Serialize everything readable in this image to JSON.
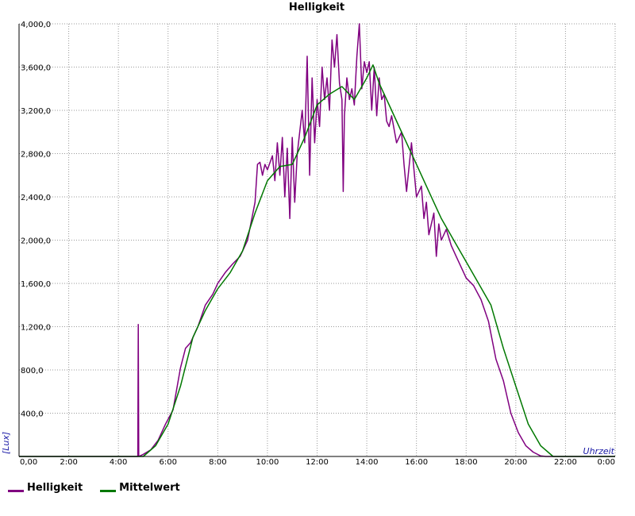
{
  "chart_data": {
    "type": "line",
    "title": "Helligkeit",
    "xlabel": "Uhrzeit",
    "ylabel": "[Lux]",
    "x_unit": "hours",
    "xlim": [
      0,
      24
    ],
    "ylim": [
      0,
      4000
    ],
    "x_tick_labels": [
      "0,00",
      "2:00",
      "4:00",
      "6:00",
      "8:00",
      "10:00",
      "12:00",
      "14:00",
      "16:00",
      "18:00",
      "20:00",
      "22:00",
      "0:00"
    ],
    "y_tick_labels": [
      "400,0",
      "800,0",
      "1,200,0",
      "1,600,0",
      "2,000,0",
      "2,400,0",
      "2,800,0",
      "3,200,0",
      "3,600,0",
      "4,000,0"
    ],
    "grid": true,
    "legend_position": "bottom-left",
    "series": [
      {
        "name": "Helligkeit",
        "color": "#800080",
        "points": [
          [
            0,
            0
          ],
          [
            4.78,
            0
          ],
          [
            4.8,
            1220
          ],
          [
            4.82,
            0
          ],
          [
            5.0,
            20
          ],
          [
            5.3,
            60
          ],
          [
            5.6,
            150
          ],
          [
            5.9,
            300
          ],
          [
            6.2,
            430
          ],
          [
            6.5,
            820
          ],
          [
            6.7,
            1000
          ],
          [
            6.9,
            1050
          ],
          [
            7.2,
            1200
          ],
          [
            7.5,
            1400
          ],
          [
            7.8,
            1500
          ],
          [
            8.0,
            1600
          ],
          [
            8.3,
            1700
          ],
          [
            8.6,
            1780
          ],
          [
            8.9,
            1850
          ],
          [
            9.2,
            2000
          ],
          [
            9.5,
            2350
          ],
          [
            9.6,
            2700
          ],
          [
            9.7,
            2720
          ],
          [
            9.8,
            2600
          ],
          [
            9.9,
            2700
          ],
          [
            10.0,
            2650
          ],
          [
            10.2,
            2780
          ],
          [
            10.3,
            2550
          ],
          [
            10.4,
            2900
          ],
          [
            10.5,
            2600
          ],
          [
            10.6,
            2950
          ],
          [
            10.7,
            2400
          ],
          [
            10.8,
            2850
          ],
          [
            10.9,
            2200
          ],
          [
            11.0,
            2950
          ],
          [
            11.1,
            2350
          ],
          [
            11.2,
            2800
          ],
          [
            11.3,
            3000
          ],
          [
            11.4,
            3200
          ],
          [
            11.5,
            2900
          ],
          [
            11.6,
            3700
          ],
          [
            11.7,
            2600
          ],
          [
            11.8,
            3500
          ],
          [
            11.9,
            2900
          ],
          [
            12.0,
            3300
          ],
          [
            12.1,
            3050
          ],
          [
            12.2,
            3600
          ],
          [
            12.3,
            3300
          ],
          [
            12.4,
            3500
          ],
          [
            12.5,
            3200
          ],
          [
            12.6,
            3850
          ],
          [
            12.7,
            3600
          ],
          [
            12.8,
            3900
          ],
          [
            12.9,
            3450
          ],
          [
            13.0,
            3300
          ],
          [
            13.05,
            2450
          ],
          [
            13.1,
            3150
          ],
          [
            13.2,
            3500
          ],
          [
            13.3,
            3300
          ],
          [
            13.4,
            3400
          ],
          [
            13.5,
            3250
          ],
          [
            13.6,
            3700
          ],
          [
            13.7,
            4000
          ],
          [
            13.8,
            3400
          ],
          [
            13.9,
            3650
          ],
          [
            14.0,
            3550
          ],
          [
            14.1,
            3650
          ],
          [
            14.2,
            3200
          ],
          [
            14.3,
            3600
          ],
          [
            14.4,
            3150
          ],
          [
            14.5,
            3500
          ],
          [
            14.6,
            3300
          ],
          [
            14.7,
            3350
          ],
          [
            14.8,
            3100
          ],
          [
            14.9,
            3050
          ],
          [
            15.0,
            3150
          ],
          [
            15.2,
            2900
          ],
          [
            15.4,
            3000
          ],
          [
            15.5,
            2700
          ],
          [
            15.6,
            2450
          ],
          [
            15.8,
            2900
          ],
          [
            16.0,
            2400
          ],
          [
            16.2,
            2500
          ],
          [
            16.3,
            2200
          ],
          [
            16.4,
            2350
          ],
          [
            16.5,
            2050
          ],
          [
            16.7,
            2250
          ],
          [
            16.8,
            1850
          ],
          [
            16.9,
            2150
          ],
          [
            17.0,
            2000
          ],
          [
            17.2,
            2100
          ],
          [
            17.4,
            1950
          ],
          [
            17.6,
            1850
          ],
          [
            17.8,
            1750
          ],
          [
            18.0,
            1650
          ],
          [
            18.3,
            1580
          ],
          [
            18.6,
            1450
          ],
          [
            18.9,
            1250
          ],
          [
            19.2,
            900
          ],
          [
            19.5,
            700
          ],
          [
            19.8,
            400
          ],
          [
            20.1,
            220
          ],
          [
            20.4,
            100
          ],
          [
            20.7,
            40
          ],
          [
            21.0,
            5
          ],
          [
            21.2,
            0
          ],
          [
            24,
            0
          ]
        ]
      },
      {
        "name": "Mittelwert",
        "color": "#007800",
        "points": [
          [
            0,
            0
          ],
          [
            5.0,
            0
          ],
          [
            5.5,
            100
          ],
          [
            6.0,
            300
          ],
          [
            6.5,
            650
          ],
          [
            7.0,
            1100
          ],
          [
            7.5,
            1350
          ],
          [
            8.0,
            1550
          ],
          [
            8.5,
            1700
          ],
          [
            9.0,
            1900
          ],
          [
            9.5,
            2250
          ],
          [
            10.0,
            2550
          ],
          [
            10.5,
            2680
          ],
          [
            11.0,
            2700
          ],
          [
            11.5,
            2950
          ],
          [
            12.0,
            3250
          ],
          [
            12.5,
            3350
          ],
          [
            13.0,
            3420
          ],
          [
            13.5,
            3300
          ],
          [
            14.0,
            3500
          ],
          [
            14.25,
            3620
          ],
          [
            14.5,
            3450
          ],
          [
            15.0,
            3200
          ],
          [
            15.5,
            2950
          ],
          [
            16.0,
            2700
          ],
          [
            16.5,
            2450
          ],
          [
            17.0,
            2200
          ],
          [
            17.5,
            2000
          ],
          [
            18.0,
            1800
          ],
          [
            18.5,
            1600
          ],
          [
            19.0,
            1400
          ],
          [
            19.5,
            1000
          ],
          [
            20.0,
            650
          ],
          [
            20.5,
            300
          ],
          [
            21.0,
            100
          ],
          [
            21.5,
            0
          ],
          [
            24,
            0
          ]
        ]
      }
    ]
  }
}
